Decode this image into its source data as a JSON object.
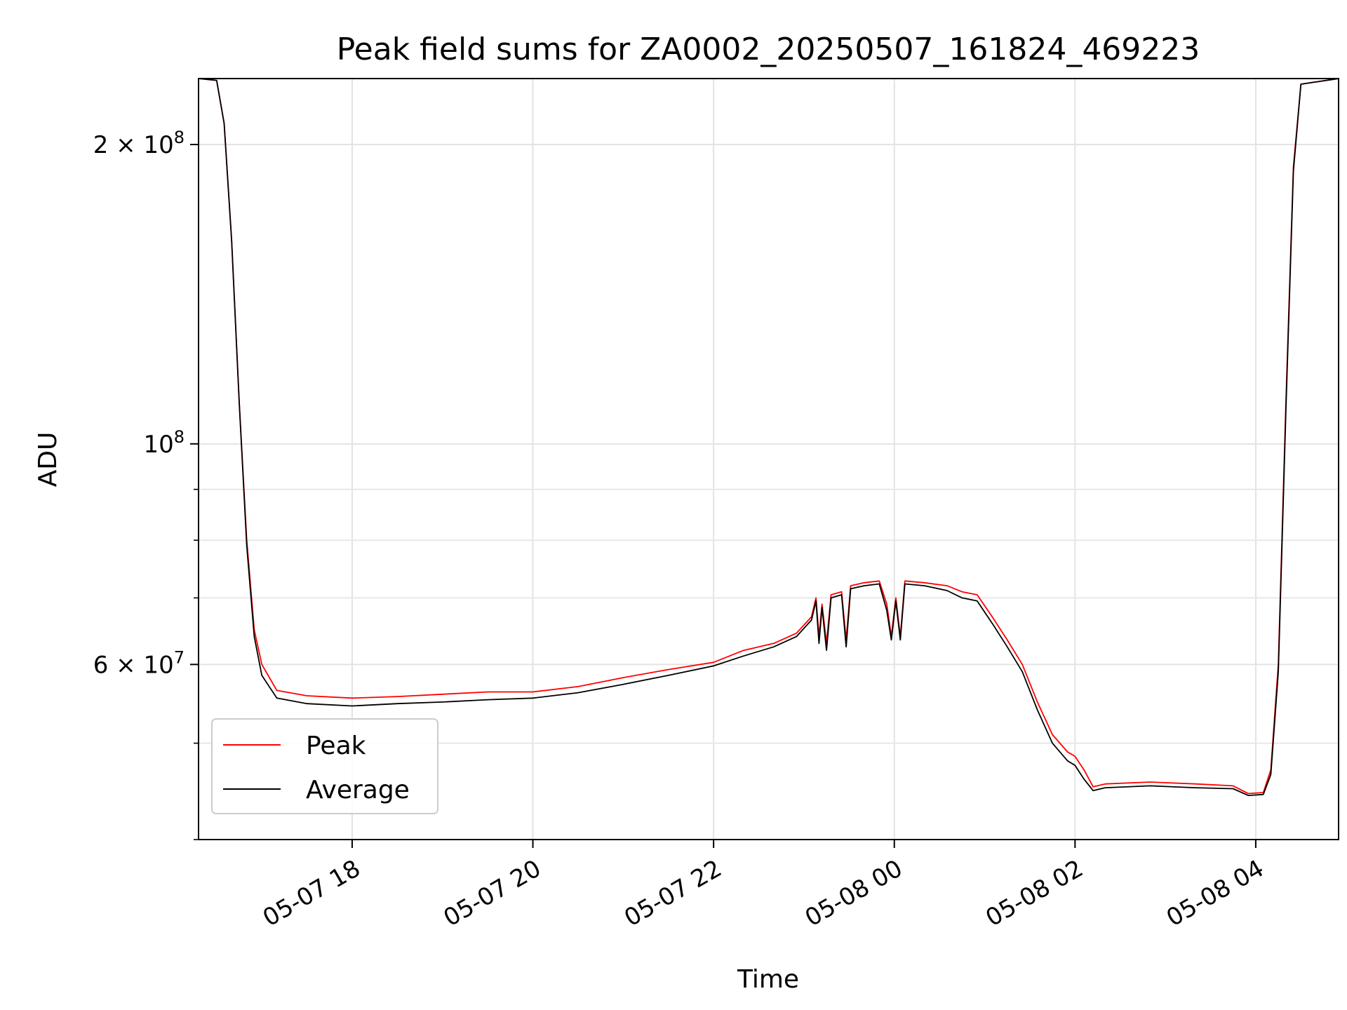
{
  "chart_data": {
    "type": "line",
    "title": "Peak field sums for ZA0002_20250507_161824_469223",
    "xlabel": "Time",
    "ylabel": "ADU",
    "yscale": "log",
    "grid": true,
    "legend_position": "lower-left",
    "xlim": [
      "2025-05-07 16:18",
      "2025-05-08 04:55"
    ],
    "ylim": [
      40000000,
      233000000
    ],
    "x_ticks": [
      {
        "t": "2025-05-07 18:00",
        "label": "05-07 18"
      },
      {
        "t": "2025-05-07 20:00",
        "label": "05-07 20"
      },
      {
        "t": "2025-05-07 22:00",
        "label": "05-07 22"
      },
      {
        "t": "2025-05-08 00:00",
        "label": "05-08 00"
      },
      {
        "t": "2025-05-08 02:00",
        "label": "05-08 02"
      },
      {
        "t": "2025-05-08 04:00",
        "label": "05-08 04"
      }
    ],
    "y_ticks": [
      {
        "value": 200000000,
        "label": "2 × 10^8",
        "mantissa": "2 × 10",
        "exp": "8"
      },
      {
        "value": 100000000,
        "label": "10^8",
        "mantissa": "10",
        "exp": "8"
      },
      {
        "value": 60000000,
        "label": "6 × 10^7",
        "mantissa": "6 × 10",
        "exp": "7"
      }
    ],
    "y_minor_ticks": [
      40000000,
      50000000,
      70000000,
      80000000,
      90000000
    ],
    "series": [
      {
        "name": "Peak",
        "color": "#ff0000",
        "points": [
          [
            "2025-05-07 16:18",
            233000000
          ],
          [
            "2025-05-07 16:30",
            232000000
          ],
          [
            "2025-05-07 16:35",
            210000000
          ],
          [
            "2025-05-07 16:40",
            160000000
          ],
          [
            "2025-05-07 16:45",
            110000000
          ],
          [
            "2025-05-07 16:50",
            80000000
          ],
          [
            "2025-05-07 16:55",
            65000000
          ],
          [
            "2025-05-07 17:00",
            60000000
          ],
          [
            "2025-05-07 17:10",
            56500000
          ],
          [
            "2025-05-07 17:30",
            55800000
          ],
          [
            "2025-05-07 18:00",
            55500000
          ],
          [
            "2025-05-07 18:30",
            55700000
          ],
          [
            "2025-05-07 19:00",
            56000000
          ],
          [
            "2025-05-07 19:30",
            56300000
          ],
          [
            "2025-05-07 20:00",
            56300000
          ],
          [
            "2025-05-07 20:30",
            57000000
          ],
          [
            "2025-05-07 21:00",
            58200000
          ],
          [
            "2025-05-07 21:30",
            59300000
          ],
          [
            "2025-05-07 22:00",
            60300000
          ],
          [
            "2025-05-07 22:20",
            62000000
          ],
          [
            "2025-05-07 22:40",
            63000000
          ],
          [
            "2025-05-07 22:55",
            64500000
          ],
          [
            "2025-05-07 23:05",
            67000000
          ],
          [
            "2025-05-07 23:08",
            70000000
          ],
          [
            "2025-05-07 23:10",
            64000000
          ],
          [
            "2025-05-07 23:12",
            69000000
          ],
          [
            "2025-05-07 23:15",
            63000000
          ],
          [
            "2025-05-07 23:18",
            70500000
          ],
          [
            "2025-05-07 23:25",
            71000000
          ],
          [
            "2025-05-07 23:28",
            63500000
          ],
          [
            "2025-05-07 23:31",
            72000000
          ],
          [
            "2025-05-07 23:40",
            72500000
          ],
          [
            "2025-05-07 23:50",
            72800000
          ],
          [
            "2025-05-07 23:55",
            69000000
          ],
          [
            "2025-05-07 23:58",
            64000000
          ],
          [
            "2025-05-08 00:01",
            70000000
          ],
          [
            "2025-05-08 00:04",
            64000000
          ],
          [
            "2025-05-08 00:07",
            72800000
          ],
          [
            "2025-05-08 00:20",
            72500000
          ],
          [
            "2025-05-08 00:35",
            72000000
          ],
          [
            "2025-05-08 00:45",
            71000000
          ],
          [
            "2025-05-08 00:55",
            70500000
          ],
          [
            "2025-05-08 01:05",
            67000000
          ],
          [
            "2025-05-08 01:15",
            63500000
          ],
          [
            "2025-05-08 01:25",
            60000000
          ],
          [
            "2025-05-08 01:35",
            55000000
          ],
          [
            "2025-05-08 01:45",
            51000000
          ],
          [
            "2025-05-08 01:55",
            49000000
          ],
          [
            "2025-05-08 02:00",
            48500000
          ],
          [
            "2025-05-08 02:06",
            47000000
          ],
          [
            "2025-05-08 02:12",
            45200000
          ],
          [
            "2025-05-08 02:20",
            45500000
          ],
          [
            "2025-05-08 02:50",
            45700000
          ],
          [
            "2025-05-08 03:20",
            45500000
          ],
          [
            "2025-05-08 03:45",
            45300000
          ],
          [
            "2025-05-08 03:55",
            44500000
          ],
          [
            "2025-05-08 04:05",
            44600000
          ],
          [
            "2025-05-08 04:10",
            47000000
          ],
          [
            "2025-05-08 04:15",
            60000000
          ],
          [
            "2025-05-08 04:20",
            110000000
          ],
          [
            "2025-05-08 04:25",
            190000000
          ],
          [
            "2025-05-08 04:30",
            230000000
          ],
          [
            "2025-05-08 04:55",
            233000000
          ]
        ]
      },
      {
        "name": "Average",
        "color": "#000000",
        "points": [
          [
            "2025-05-07 16:18",
            233000000
          ],
          [
            "2025-05-07 16:30",
            232000000
          ],
          [
            "2025-05-07 16:35",
            210000000
          ],
          [
            "2025-05-07 16:40",
            160000000
          ],
          [
            "2025-05-07 16:45",
            110000000
          ],
          [
            "2025-05-07 16:50",
            79000000
          ],
          [
            "2025-05-07 16:55",
            64000000
          ],
          [
            "2025-05-07 17:00",
            58500000
          ],
          [
            "2025-05-07 17:10",
            55500000
          ],
          [
            "2025-05-07 17:30",
            54800000
          ],
          [
            "2025-05-07 18:00",
            54500000
          ],
          [
            "2025-05-07 18:30",
            54800000
          ],
          [
            "2025-05-07 19:00",
            55000000
          ],
          [
            "2025-05-07 19:30",
            55300000
          ],
          [
            "2025-05-07 20:00",
            55500000
          ],
          [
            "2025-05-07 20:30",
            56200000
          ],
          [
            "2025-05-07 21:00",
            57300000
          ],
          [
            "2025-05-07 21:30",
            58500000
          ],
          [
            "2025-05-07 22:00",
            59800000
          ],
          [
            "2025-05-07 22:20",
            61200000
          ],
          [
            "2025-05-07 22:40",
            62500000
          ],
          [
            "2025-05-07 22:55",
            64000000
          ],
          [
            "2025-05-07 23:05",
            66500000
          ],
          [
            "2025-05-07 23:08",
            69500000
          ],
          [
            "2025-05-07 23:10",
            63000000
          ],
          [
            "2025-05-07 23:12",
            68500000
          ],
          [
            "2025-05-07 23:15",
            62000000
          ],
          [
            "2025-05-07 23:18",
            70000000
          ],
          [
            "2025-05-07 23:25",
            70500000
          ],
          [
            "2025-05-07 23:28",
            62500000
          ],
          [
            "2025-05-07 23:31",
            71500000
          ],
          [
            "2025-05-07 23:40",
            72000000
          ],
          [
            "2025-05-07 23:50",
            72300000
          ],
          [
            "2025-05-07 23:55",
            68000000
          ],
          [
            "2025-05-07 23:58",
            63500000
          ],
          [
            "2025-05-08 00:01",
            69500000
          ],
          [
            "2025-05-08 00:04",
            63500000
          ],
          [
            "2025-05-08 00:07",
            72300000
          ],
          [
            "2025-05-08 00:20",
            72000000
          ],
          [
            "2025-05-08 00:35",
            71200000
          ],
          [
            "2025-05-08 00:45",
            70000000
          ],
          [
            "2025-05-08 00:55",
            69500000
          ],
          [
            "2025-05-08 01:05",
            66000000
          ],
          [
            "2025-05-08 01:15",
            62500000
          ],
          [
            "2025-05-08 01:25",
            59000000
          ],
          [
            "2025-05-08 01:35",
            54000000
          ],
          [
            "2025-05-08 01:45",
            50000000
          ],
          [
            "2025-05-08 01:55",
            48000000
          ],
          [
            "2025-05-08 02:00",
            47500000
          ],
          [
            "2025-05-08 02:06",
            46000000
          ],
          [
            "2025-05-08 02:12",
            44800000
          ],
          [
            "2025-05-08 02:20",
            45100000
          ],
          [
            "2025-05-08 02:50",
            45300000
          ],
          [
            "2025-05-08 03:20",
            45100000
          ],
          [
            "2025-05-08 03:45",
            45000000
          ],
          [
            "2025-05-08 03:55",
            44300000
          ],
          [
            "2025-05-08 04:05",
            44400000
          ],
          [
            "2025-05-08 04:10",
            46500000
          ],
          [
            "2025-05-08 04:15",
            59000000
          ],
          [
            "2025-05-08 04:20",
            108000000
          ],
          [
            "2025-05-08 04:25",
            188000000
          ],
          [
            "2025-05-08 04:30",
            230000000
          ],
          [
            "2025-05-08 04:55",
            233000000
          ]
        ]
      }
    ]
  }
}
